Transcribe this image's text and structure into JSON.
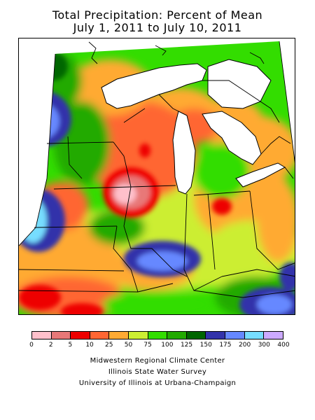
{
  "header": {
    "title_line1": "Total Precipitation: Percent of Mean",
    "title_line2": "July 1, 2011 to July 10, 2011"
  },
  "legend": {
    "ticks": [
      "0",
      "2",
      "5",
      "10",
      "25",
      "50",
      "75",
      "100",
      "125",
      "150",
      "175",
      "200",
      "300",
      "400"
    ],
    "colors": [
      "#ffc0cb",
      "#e87878",
      "#ee0000",
      "#ff6633",
      "#ffaa33",
      "#ccee33",
      "#33dd00",
      "#22aa00",
      "#006600",
      "#3333aa",
      "#6688ff",
      "#77ddff",
      "#ccaaff"
    ]
  },
  "credits": {
    "line1": "Midwestern Regional Climate Center",
    "line2": "Illinois State Water Survey",
    "line3": "University of Illinois at Urbana-Champaign"
  }
}
